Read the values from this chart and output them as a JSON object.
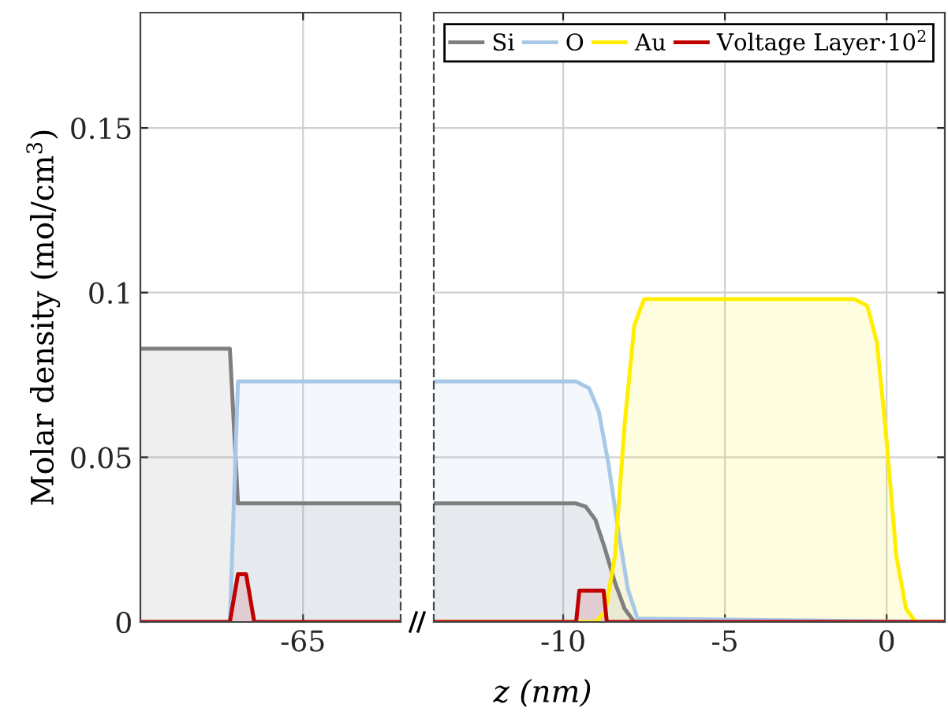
{
  "chart_data": [
    {
      "type": "area",
      "ylabel": "Molar density (mol/cm$^{3}$)",
      "categories": [
        null,
        null,
        null,
        null,
        null,
        null,
        null,
        null,
        null,
        null,
        null,
        null,
        null,
        null,
        null,
        null,
        null,
        null,
        null,
        null,
        "-65",
        null,
        null,
        null,
        null,
        null,
        null,
        null,
        null,
        null,
        null,
        null,
        null
      ],
      "ylim": [
        0,
        0.185
      ],
      "yticks": [
        0,
        0.05,
        0.1,
        0.15
      ],
      "grid": true,
      "legend": false,
      "series": [
        {
          "color": "#7f7f7f",
          "values": [
            0.083,
            0.083,
            0.083,
            0.083,
            0.083,
            0.083,
            0.083,
            0.083,
            0.083,
            0.083,
            0.083,
            0.083,
            0.036,
            0.036,
            0.036,
            0.036,
            0.036,
            0.036,
            0.036,
            0.036,
            0.036,
            0.036,
            0.036,
            0.036,
            0.036,
            0.036,
            0.036,
            0.036,
            0.036,
            0.036,
            0.036,
            0.036,
            0.036
          ]
        },
        {
          "color": "#a8c8e8",
          "values": [
            0,
            0,
            0,
            0,
            0,
            0,
            0,
            0,
            0,
            0,
            0,
            0,
            0.073,
            0.073,
            0.073,
            0.073,
            0.073,
            0.073,
            0.073,
            0.073,
            0.073,
            0.073,
            0.073,
            0.073,
            0.073,
            0.073,
            0.073,
            0.073,
            0.073,
            0.073,
            0.073,
            0.073,
            0.073
          ]
        },
        {
          "color": "#c00000",
          "values": [
            0,
            0,
            0,
            0,
            0,
            0,
            0,
            0,
            0,
            0,
            0,
            0,
            0.0145,
            0.0145,
            0,
            0,
            0,
            0,
            0,
            0,
            0,
            0,
            0,
            0,
            0,
            0,
            0,
            0,
            0,
            0,
            0,
            0,
            0
          ]
        }
      ]
    },
    {
      "type": "area",
      "xlabel": "z (nm)",
      "xlim": [
        -14,
        1.8
      ],
      "xticks": [
        -10,
        -5,
        0
      ],
      "ylim": [
        0,
        0.185
      ],
      "yticks": [
        0,
        0.05,
        0.1,
        0.15
      ],
      "tick_labels": "x",
      "grid": true,
      "legend": "top right",
      "series": [
        {
          "name": "Si",
          "color": "#7f7f7f",
          "x": [
            -14,
            -9.6,
            -9.3,
            -9.0,
            -8.7,
            -8.4,
            -8.1,
            -7.8,
            1.8
          ],
          "values": [
            0.036,
            0.036,
            0.035,
            0.031,
            0.022,
            0.012,
            0.004,
            0,
            0
          ]
        },
        {
          "name": "O",
          "color": "#a8c8e8",
          "x": [
            -14,
            -9.6,
            -9.2,
            -8.9,
            -8.6,
            -8.3,
            -8.0,
            -7.7,
            1.8
          ],
          "values": [
            0.073,
            0.073,
            0.071,
            0.064,
            0.048,
            0.028,
            0.01,
            0.001,
            0
          ]
        },
        {
          "name": "Au",
          "color": "#ffee00",
          "x": [
            -14,
            -9.0,
            -8.7,
            -8.4,
            -8.1,
            -7.8,
            -7.5,
            -1.0,
            -0.6,
            -0.3,
            0,
            0.3,
            0.6,
            0.9,
            1.8
          ],
          "values": [
            0,
            0,
            0.003,
            0.02,
            0.06,
            0.09,
            0.098,
            0.098,
            0.096,
            0.085,
            0.055,
            0.02,
            0.004,
            0,
            0
          ]
        },
        {
          "name": "Voltage Layer·10$^{2}$",
          "color": "#c00000",
          "x": [
            -14,
            -9.6,
            -9.5,
            -8.75,
            -8.65,
            1.8
          ],
          "values": [
            0,
            0,
            0.0095,
            0.0095,
            0,
            0
          ]
        }
      ]
    }
  ]
}
